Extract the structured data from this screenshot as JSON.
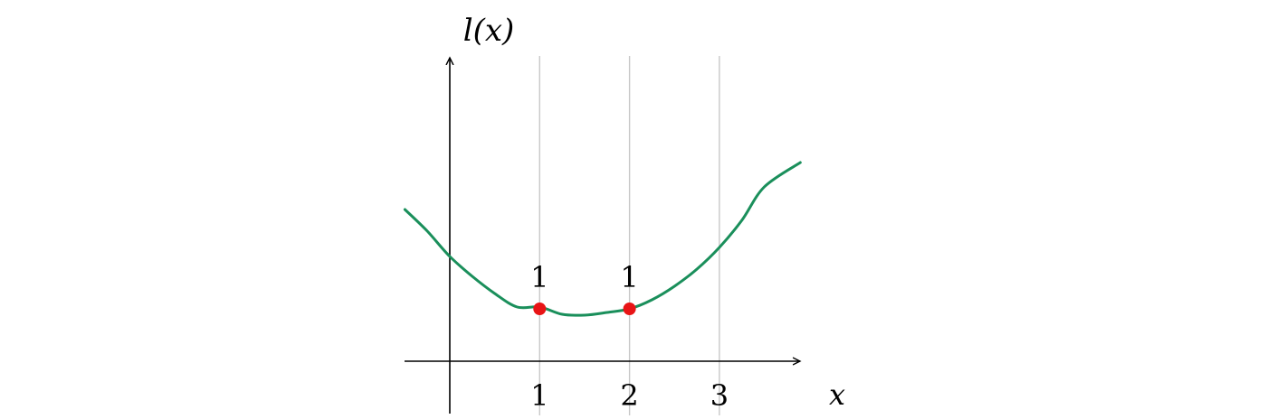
{
  "chart_data": {
    "type": "line",
    "ylabel": "l(x)",
    "xlabel": "x",
    "x_ticks": [
      {
        "value": 1,
        "label": "1"
      },
      {
        "value": 2,
        "label": "2"
      },
      {
        "value": 3,
        "label": "3"
      }
    ],
    "curve": {
      "color": "#1a8f5b",
      "x": [
        -0.5,
        -0.25,
        0,
        0.25,
        0.5,
        0.75,
        1,
        1.25,
        1.5,
        1.75,
        2,
        2.25,
        2.5,
        2.75,
        3,
        3.25,
        3.5,
        3.9
      ],
      "y": [
        1.68,
        1.44,
        1.16,
        0.94,
        0.75,
        0.6,
        0.6,
        0.52,
        0.51,
        0.54,
        0.58,
        0.68,
        0.83,
        1.02,
        1.26,
        1.56,
        1.93,
        2.2
      ]
    },
    "points": [
      {
        "x": 1,
        "y": 0.58,
        "label": "1",
        "color": "#e81416"
      },
      {
        "x": 2,
        "y": 0.58,
        "label": "1",
        "color": "#e81416"
      }
    ],
    "xlim": [
      -0.5,
      3.9
    ],
    "ylim": [
      -0.55,
      3.4
    ],
    "grid": "vertical lines at x ticks"
  }
}
